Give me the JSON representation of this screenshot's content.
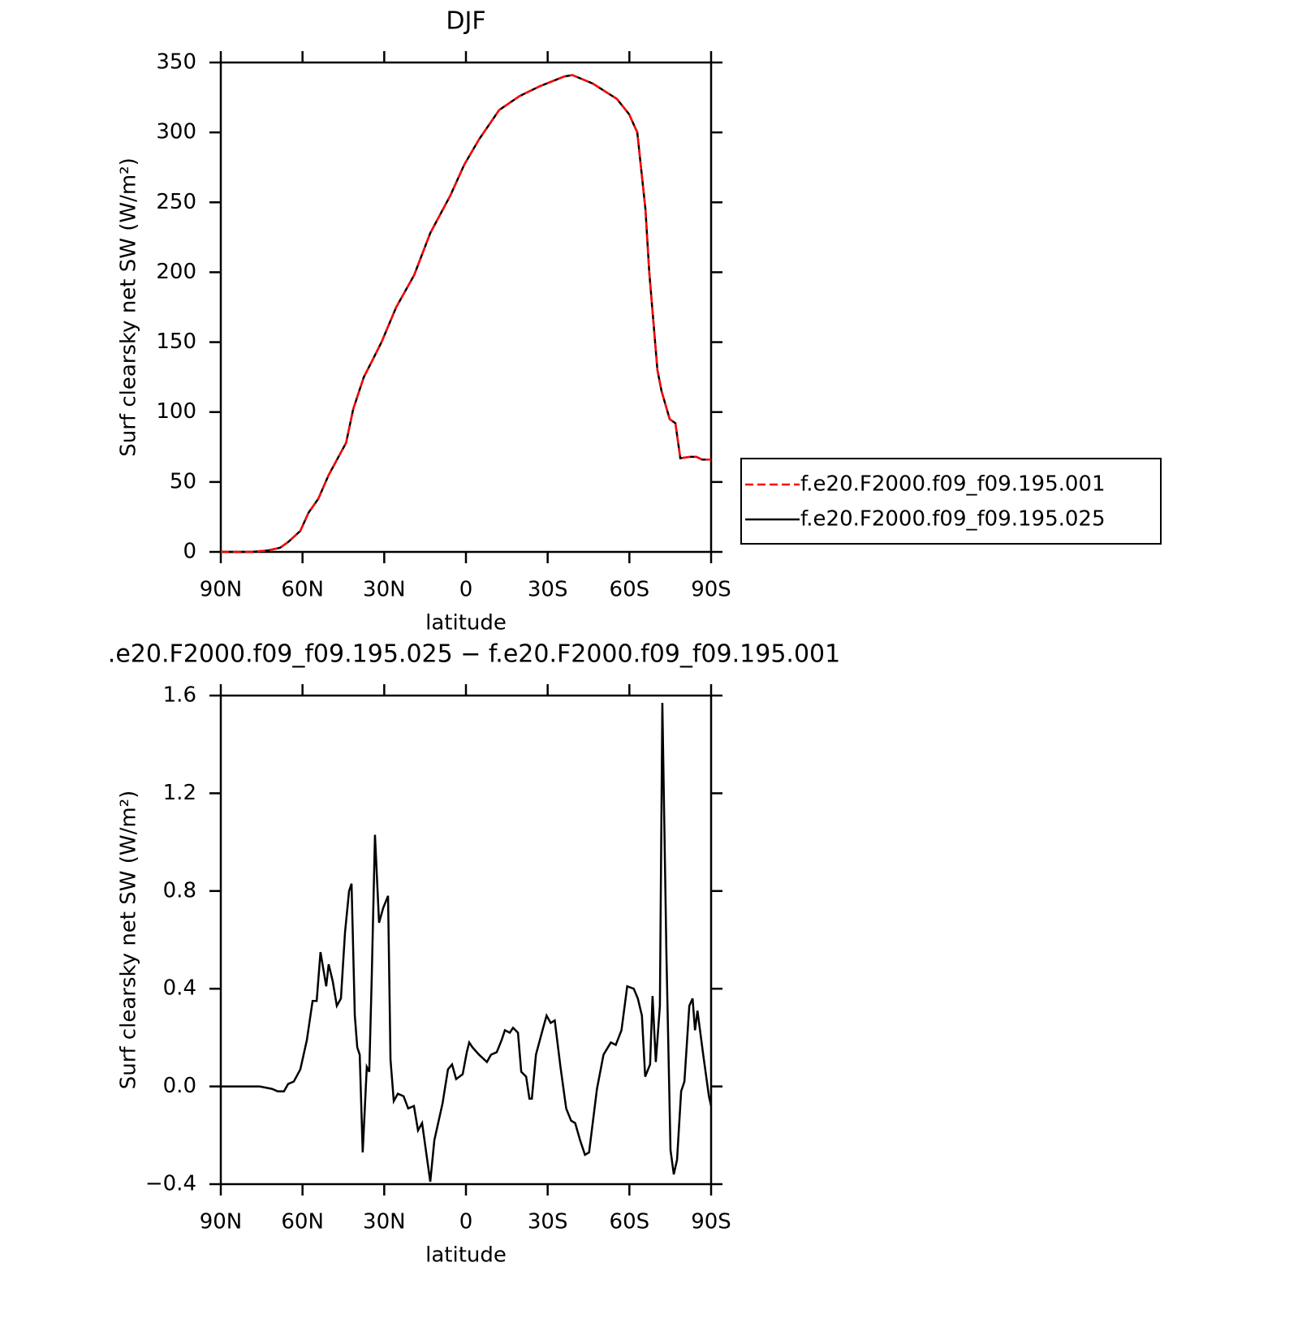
{
  "chart_data": [
    {
      "type": "line",
      "title": "DJF",
      "xlabel": "latitude",
      "ylabel": "Surf clearsky net SW (W/m²)",
      "x": [
        90,
        78.7,
        72.7,
        68.2,
        65.3,
        60.8,
        57.8,
        54.2,
        50.4,
        44,
        41.4,
        37.5,
        34.6,
        31,
        25.6,
        19,
        13.1,
        5.7,
        0.6,
        -4.8,
        -12.2,
        -19.7,
        -27.1,
        -36.1,
        -39.1,
        -46.5,
        -55.4,
        -59.9,
        -62.9,
        -65.9,
        -67.3,
        -70.3,
        -71.8,
        -74.8,
        -76.9,
        -78.7,
        -82.3,
        -84.6,
        -86.7,
        -90
      ],
      "series": [
        {
          "name": "f.e20.F2000.f09_f09.195.001",
          "color": "#ff0000",
          "dashed": true,
          "values": [
            0,
            0,
            1,
            3,
            7,
            15,
            28,
            38,
            55,
            78,
            102,
            125,
            136,
            150,
            175,
            198,
            228,
            255,
            277,
            295,
            316,
            326,
            333,
            340,
            341,
            335,
            324,
            313,
            300,
            245,
            200,
            130,
            115,
            95,
            92,
            67,
            68,
            68,
            66,
            66
          ]
        },
        {
          "name": "f.e20.F2000.f09_f09.195.025",
          "color": "#000000",
          "dashed": false,
          "values": [
            0,
            0,
            1,
            3,
            7,
            15,
            28,
            38,
            55,
            78,
            102,
            125,
            136,
            150,
            175,
            198,
            228,
            255,
            277,
            295,
            316,
            326,
            333,
            340,
            341,
            335,
            324,
            313,
            300,
            245,
            200,
            130,
            115,
            95,
            92,
            67,
            68,
            68,
            66,
            66
          ]
        }
      ],
      "xlim": [
        90,
        -90
      ],
      "xticks": [
        {
          "value": 90,
          "label": "90N"
        },
        {
          "value": 60,
          "label": "60N"
        },
        {
          "value": 30,
          "label": "30N"
        },
        0,
        {
          "value": -30,
          "label": "30S"
        },
        {
          "value": -60,
          "label": "60S"
        },
        {
          "value": -90,
          "label": "90S"
        }
      ],
      "ylim": [
        0,
        350
      ],
      "yticks": [
        0,
        50,
        100,
        150,
        200,
        250,
        300,
        350
      ],
      "legend": "right"
    },
    {
      "type": "line",
      "title": ".e20.F2000.f09_f09.195.025 − f.e20.F2000.f09_f09.195.001",
      "xlabel": "latitude",
      "ylabel": "Surf clearsky net SW (W/m²)",
      "x": [
        90,
        75.7,
        71.2,
        69.1,
        66.8,
        65.3,
        63.2,
        60.8,
        58.4,
        56.3,
        54.8,
        53.4,
        51.3,
        50.4,
        48.9,
        47.4,
        45.9,
        44.4,
        42.9,
        42,
        40.8,
        39.9,
        39,
        37.9,
        36.4,
        35.5,
        34.6,
        33.4,
        31.9,
        30.4,
        28.6,
        27.7,
        26.5,
        25,
        22.9,
        21.2,
        19.1,
        17.6,
        16.1,
        14.6,
        13.1,
        11.6,
        8.6,
        6.6,
        5.1,
        3.6,
        1.2,
        -0.3,
        -1.2,
        -2.4,
        -4.8,
        -7.7,
        -9.2,
        -11.3,
        -13.1,
        -14.3,
        -16.1,
        -17.3,
        -19.1,
        -20.3,
        -22.1,
        -23.3,
        -24.2,
        -25.7,
        -28.1,
        -29.6,
        -31.1,
        -32.6,
        -34.7,
        -36.8,
        -38.6,
        -40.1,
        -41.9,
        -43.7,
        -45.2,
        -48.1,
        -50.5,
        -53.2,
        -55,
        -57.1,
        -59.2,
        -61.6,
        -63.1,
        -64.6,
        -65.8,
        -67.6,
        -68.5,
        -69.7,
        -71.2,
        -72.1,
        -73.6,
        -75.1,
        -76.3,
        -77.5,
        -79,
        -80.2,
        -82,
        -83.2,
        -84.1,
        -85,
        -87.1,
        -89.2,
        -90
      ],
      "values": [
        0,
        0,
        -0.01,
        -0.02,
        -0.02,
        0.01,
        0.02,
        0.07,
        0.19,
        0.35,
        0.35,
        0.55,
        0.41,
        0.5,
        0.43,
        0.33,
        0.36,
        0.63,
        0.8,
        0.83,
        0.29,
        0.16,
        0.13,
        -0.27,
        0.08,
        0.06,
        0.44,
        1.03,
        0.67,
        0.73,
        0.78,
        0.11,
        -0.06,
        -0.03,
        -0.04,
        -0.09,
        -0.08,
        -0.18,
        -0.15,
        -0.27,
        -0.39,
        -0.22,
        -0.07,
        0.07,
        0.09,
        0.03,
        0.05,
        0.14,
        0.18,
        0.16,
        0.13,
        0.1,
        0.13,
        0.14,
        0.19,
        0.23,
        0.22,
        0.24,
        0.22,
        0.06,
        0.04,
        -0.05,
        -0.05,
        0.13,
        0.23,
        0.29,
        0.26,
        0.27,
        0.08,
        -0.09,
        -0.14,
        -0.15,
        -0.22,
        -0.28,
        -0.27,
        -0.01,
        0.13,
        0.18,
        0.17,
        0.23,
        0.41,
        0.4,
        0.36,
        0.29,
        0.04,
        0.09,
        0.37,
        0.1,
        0.33,
        1.57,
        0.54,
        -0.26,
        -0.36,
        -0.3,
        -0.02,
        0.02,
        0.33,
        0.36,
        0.23,
        0.31,
        0.13,
        -0.04,
        -0.08
      ],
      "color": "#000000",
      "xlim": [
        90,
        -90
      ],
      "xticks": [
        {
          "value": 90,
          "label": "90N"
        },
        {
          "value": 60,
          "label": "60N"
        },
        {
          "value": 30,
          "label": "30N"
        },
        0,
        {
          "value": -30,
          "label": "30S"
        },
        {
          "value": -60,
          "label": "60S"
        },
        {
          "value": -90,
          "label": "90S"
        }
      ],
      "ylim": [
        -0.4,
        1.6
      ],
      "yticks": [
        {
          "value": -0.4,
          "label": "−0.4"
        },
        {
          "value": 0,
          "label": "0.0"
        },
        0.4,
        0.8,
        1.2,
        1.6
      ]
    }
  ]
}
